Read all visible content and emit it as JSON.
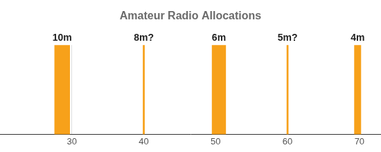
{
  "chart_data": {
    "type": "bar",
    "title": "Amateur Radio Allocations",
    "categories": [
      "10m",
      "8m?",
      "6m",
      "5m?",
      "4m"
    ],
    "values": [
      [
        27.6,
        29.7
      ],
      [
        39.9,
        40.1
      ],
      [
        49.5,
        51.4
      ],
      [
        59.9,
        60.1
      ],
      [
        69.3,
        70.2
      ]
    ],
    "color": "#f7a11a",
    "xlim": [
      20,
      73
    ],
    "xticks": [
      30,
      40,
      50,
      60,
      70
    ],
    "grid": true,
    "tick_labels": "x"
  }
}
